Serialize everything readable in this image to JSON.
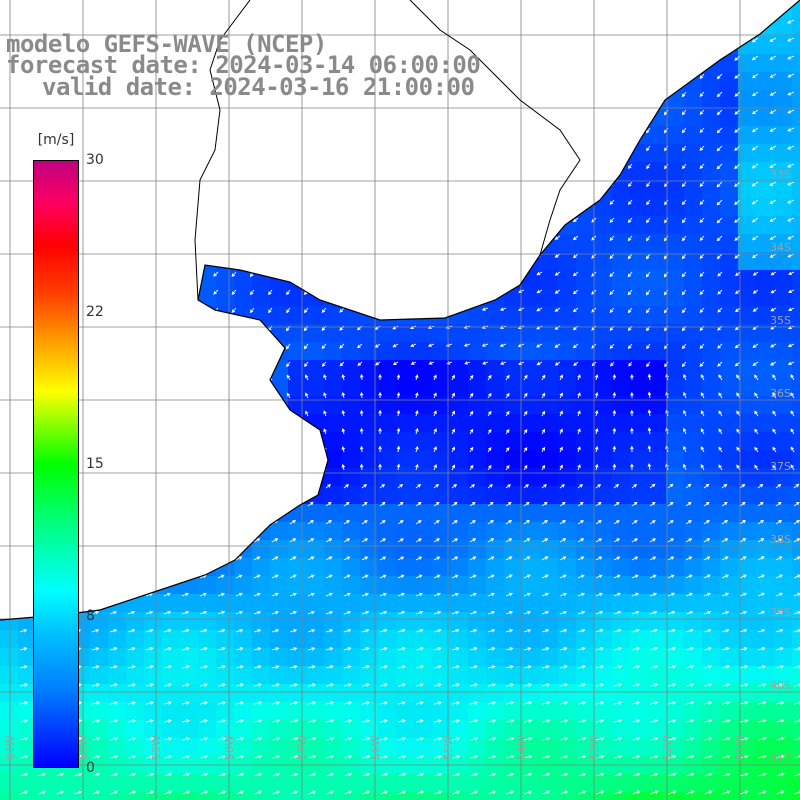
{
  "title": {
    "model": "modelo GEFS-WAVE (NCEP)",
    "forecast": "forecast date: 2024-03-14 06:00:00",
    "valid": "valid date: 2024-03-16 21:00:00"
  },
  "colorbar": {
    "unit": "[m/s]",
    "ticks": [
      "30",
      "22",
      "15",
      "8",
      "0"
    ],
    "colors": [
      "#0000ff",
      "#00ffff",
      "#00ff00",
      "#ffff00",
      "#ff0000",
      "#c00080"
    ]
  },
  "map_labels": {
    "lat": [
      "33S",
      "34S",
      "35S",
      "36S",
      "37S",
      "38S",
      "39S",
      "40S",
      "41S"
    ],
    "lon": [
      "61W",
      "60W",
      "59W",
      "58W",
      "57W",
      "56W",
      "55W",
      "54W",
      "53W",
      "52W",
      "51W"
    ]
  },
  "colors": {
    "land": "#ffffff",
    "coast": "#000000",
    "grid": "#808080",
    "arrows": "#ffffff",
    "title": "#8a8a8a"
  }
}
